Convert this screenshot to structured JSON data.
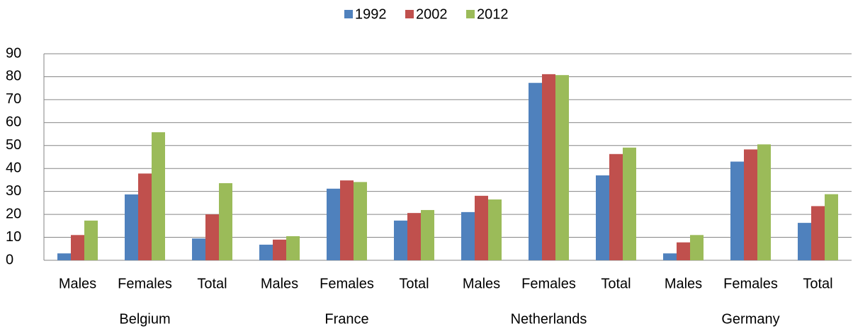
{
  "chart_data": {
    "type": "bar",
    "categories": [
      "Males",
      "Females",
      "Total",
      "Males",
      "Females",
      "Total",
      "Males",
      "Females",
      "Total",
      "Males",
      "Females",
      "Total"
    ],
    "groups": [
      "Belgium",
      "France",
      "Netherlands",
      "Germany"
    ],
    "series": [
      {
        "name": "1992",
        "color": "#4f81bd",
        "values": [
          3,
          28.7,
          9.5,
          6.8,
          31.2,
          17.3,
          21,
          77.3,
          37,
          3,
          43,
          16.3
        ]
      },
      {
        "name": "2002",
        "color": "#c0504d",
        "values": [
          11,
          37.8,
          20,
          9,
          34.8,
          20.6,
          28.1,
          81.1,
          46.3,
          7.8,
          48.3,
          23.6
        ]
      },
      {
        "name": "2012",
        "color": "#9bbb59",
        "values": [
          17.3,
          55.8,
          33.6,
          10.5,
          34.1,
          21.9,
          26.5,
          80.7,
          49.1,
          11,
          50.5,
          28.8
        ]
      }
    ],
    "ylim": [
      0,
      90
    ],
    "yticks": [
      0,
      10,
      20,
      30,
      40,
      50,
      60,
      70,
      80,
      90
    ],
    "grid": true,
    "legend": "top"
  }
}
